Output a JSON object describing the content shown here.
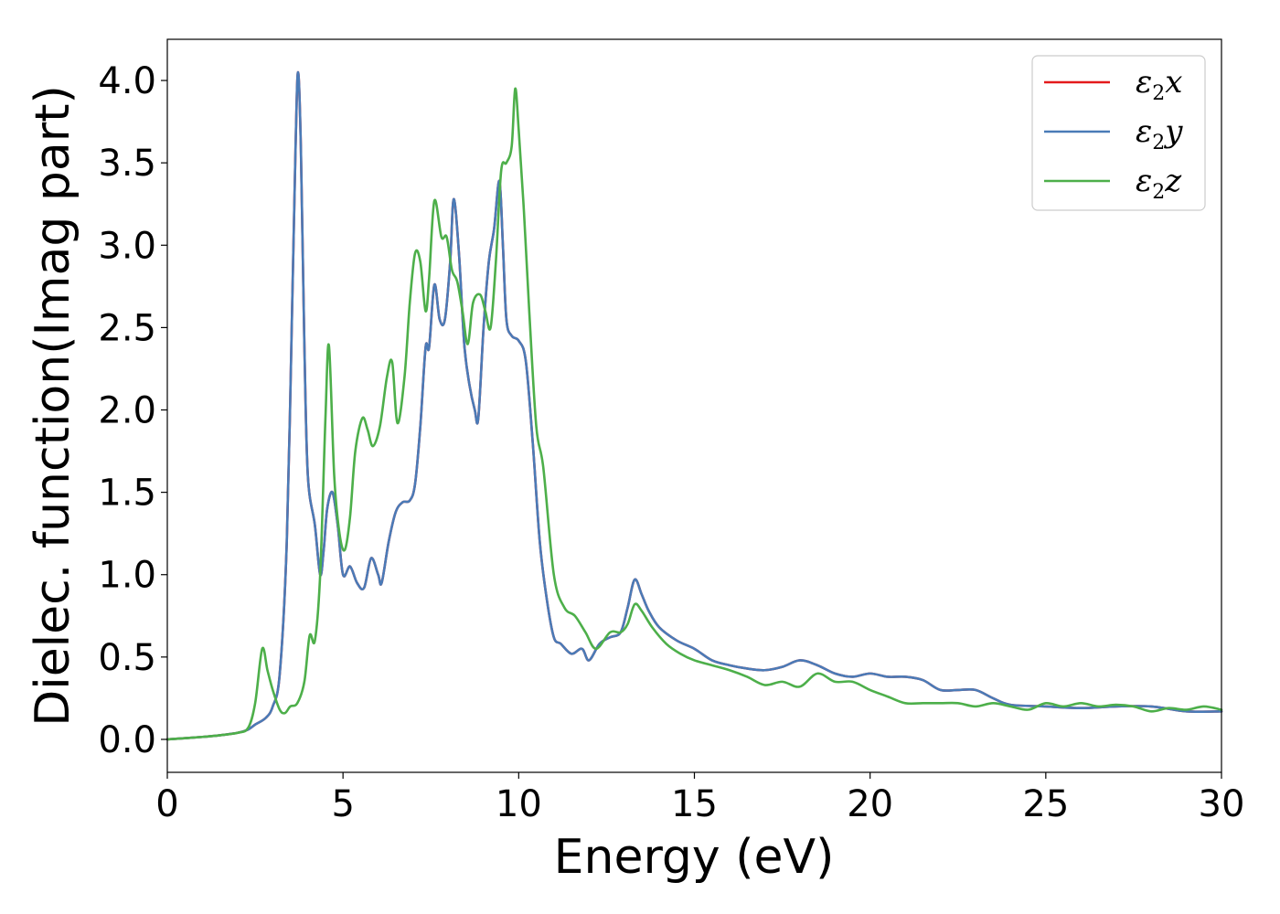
{
  "chart_data": {
    "type": "line",
    "xlabel": "Energy (eV)",
    "ylabel": "Dielec. function(Imag part)",
    "xlim": [
      0,
      30
    ],
    "ylim": [
      -0.2,
      4.25
    ],
    "xticks": [
      "0",
      "5",
      "10",
      "15",
      "20",
      "25",
      "30"
    ],
    "yticks": [
      "0.0",
      "0.5",
      "1.0",
      "1.5",
      "2.0",
      "2.5",
      "3.0",
      "3.5",
      "4.0"
    ],
    "grid": false,
    "legend_position": "top-right",
    "series": [
      {
        "name": "ε2x",
        "legend_base": "ε",
        "legend_sub": "2",
        "legend_tail": "x",
        "color": "#e41a1c",
        "x": [
          0,
          1,
          1.5,
          2,
          2.3,
          2.5,
          2.8,
          3.0,
          3.2,
          3.4,
          3.55,
          3.65,
          3.72,
          3.8,
          3.9,
          4.0,
          4.2,
          4.35,
          4.45,
          4.55,
          4.7,
          4.85,
          5.0,
          5.2,
          5.4,
          5.6,
          5.8,
          6.0,
          6.1,
          6.3,
          6.5,
          6.7,
          6.9,
          7.05,
          7.2,
          7.35,
          7.45,
          7.6,
          7.75,
          7.9,
          8.05,
          8.15,
          8.3,
          8.45,
          8.6,
          8.75,
          8.85,
          9.0,
          9.15,
          9.3,
          9.45,
          9.55,
          9.65,
          9.8,
          10.0,
          10.2,
          10.4,
          10.6,
          10.8,
          11.0,
          11.2,
          11.5,
          11.8,
          12.0,
          12.3,
          12.6,
          12.9,
          13.1,
          13.3,
          13.5,
          13.7,
          14.0,
          14.5,
          15.0,
          15.5,
          16.0,
          16.5,
          17.0,
          17.5,
          18.0,
          18.5,
          19.0,
          19.5,
          20.0,
          20.5,
          21.0,
          21.5,
          22.0,
          22.5,
          23.0,
          23.5,
          24.0,
          25.0,
          26.0,
          27.0,
          28.0,
          29.0,
          30.0
        ],
        "y": [
          0,
          0.015,
          0.025,
          0.04,
          0.06,
          0.09,
          0.13,
          0.2,
          0.4,
          1.2,
          2.6,
          3.6,
          4.05,
          3.6,
          2.4,
          1.6,
          1.3,
          1.0,
          1.15,
          1.4,
          1.5,
          1.3,
          1.0,
          1.05,
          0.95,
          0.92,
          1.1,
          1.0,
          0.95,
          1.2,
          1.38,
          1.44,
          1.45,
          1.55,
          1.9,
          2.38,
          2.38,
          2.76,
          2.55,
          2.55,
          2.9,
          3.28,
          2.95,
          2.4,
          2.15,
          2.0,
          1.95,
          2.5,
          2.9,
          3.1,
          3.39,
          3.0,
          2.55,
          2.45,
          2.42,
          2.3,
          1.8,
          1.2,
          0.85,
          0.62,
          0.58,
          0.52,
          0.55,
          0.48,
          0.58,
          0.62,
          0.65,
          0.8,
          0.97,
          0.88,
          0.78,
          0.68,
          0.6,
          0.55,
          0.48,
          0.45,
          0.43,
          0.42,
          0.44,
          0.48,
          0.45,
          0.4,
          0.38,
          0.4,
          0.38,
          0.38,
          0.36,
          0.3,
          0.3,
          0.3,
          0.25,
          0.21,
          0.2,
          0.19,
          0.2,
          0.2,
          0.17,
          0.17
        ]
      },
      {
        "name": "ε2y",
        "legend_base": "ε",
        "legend_sub": "2",
        "legend_tail": "y",
        "color": "#4a7bb7",
        "x": [
          0,
          1,
          1.5,
          2,
          2.3,
          2.5,
          2.8,
          3.0,
          3.2,
          3.4,
          3.55,
          3.65,
          3.72,
          3.8,
          3.9,
          4.0,
          4.2,
          4.35,
          4.45,
          4.55,
          4.7,
          4.85,
          5.0,
          5.2,
          5.4,
          5.6,
          5.8,
          6.0,
          6.1,
          6.3,
          6.5,
          6.7,
          6.9,
          7.05,
          7.2,
          7.35,
          7.45,
          7.6,
          7.75,
          7.9,
          8.05,
          8.15,
          8.3,
          8.45,
          8.6,
          8.75,
          8.85,
          9.0,
          9.15,
          9.3,
          9.45,
          9.55,
          9.65,
          9.8,
          10.0,
          10.2,
          10.4,
          10.6,
          10.8,
          11.0,
          11.2,
          11.5,
          11.8,
          12.0,
          12.3,
          12.6,
          12.9,
          13.1,
          13.3,
          13.5,
          13.7,
          14.0,
          14.5,
          15.0,
          15.5,
          16.0,
          16.5,
          17.0,
          17.5,
          18.0,
          18.5,
          19.0,
          19.5,
          20.0,
          20.5,
          21.0,
          21.5,
          22.0,
          22.5,
          23.0,
          23.5,
          24.0,
          25.0,
          26.0,
          27.0,
          28.0,
          29.0,
          30.0
        ],
        "y": [
          0,
          0.015,
          0.025,
          0.04,
          0.06,
          0.09,
          0.13,
          0.2,
          0.4,
          1.2,
          2.6,
          3.6,
          4.05,
          3.6,
          2.4,
          1.6,
          1.3,
          1.0,
          1.15,
          1.4,
          1.5,
          1.3,
          1.0,
          1.05,
          0.95,
          0.92,
          1.1,
          1.0,
          0.95,
          1.2,
          1.38,
          1.44,
          1.45,
          1.55,
          1.9,
          2.38,
          2.38,
          2.76,
          2.55,
          2.55,
          2.9,
          3.28,
          2.95,
          2.4,
          2.15,
          2.0,
          1.95,
          2.5,
          2.9,
          3.1,
          3.39,
          3.0,
          2.55,
          2.45,
          2.42,
          2.3,
          1.8,
          1.2,
          0.85,
          0.62,
          0.58,
          0.52,
          0.55,
          0.48,
          0.58,
          0.62,
          0.65,
          0.8,
          0.97,
          0.88,
          0.78,
          0.68,
          0.6,
          0.55,
          0.48,
          0.45,
          0.43,
          0.42,
          0.44,
          0.48,
          0.45,
          0.4,
          0.38,
          0.4,
          0.38,
          0.38,
          0.36,
          0.3,
          0.3,
          0.3,
          0.25,
          0.21,
          0.2,
          0.19,
          0.2,
          0.2,
          0.17,
          0.17
        ]
      },
      {
        "name": "ε2z",
        "legend_base": "ε",
        "legend_sub": "2",
        "legend_tail": "z",
        "color": "#4daf4a",
        "x": [
          0,
          1,
          1.5,
          2,
          2.3,
          2.5,
          2.7,
          2.85,
          3.0,
          3.2,
          3.35,
          3.5,
          3.7,
          3.9,
          4.05,
          4.2,
          4.35,
          4.5,
          4.6,
          4.75,
          4.9,
          5.05,
          5.2,
          5.35,
          5.55,
          5.7,
          5.85,
          6.05,
          6.25,
          6.4,
          6.55,
          6.75,
          6.9,
          7.05,
          7.2,
          7.35,
          7.45,
          7.6,
          7.8,
          7.95,
          8.1,
          8.25,
          8.4,
          8.55,
          8.7,
          8.9,
          9.05,
          9.2,
          9.35,
          9.5,
          9.65,
          9.8,
          9.9,
          10.0,
          10.15,
          10.3,
          10.5,
          10.7,
          11.0,
          11.3,
          11.6,
          11.9,
          12.2,
          12.6,
          12.9,
          13.1,
          13.3,
          13.5,
          13.8,
          14.2,
          14.6,
          15.0,
          15.5,
          16.0,
          16.5,
          17.0,
          17.5,
          18.0,
          18.5,
          19.0,
          19.5,
          20.0,
          20.5,
          21.0,
          21.5,
          22.0,
          22.5,
          23.0,
          23.5,
          24.0,
          24.5,
          25.0,
          25.5,
          26.0,
          26.5,
          27.0,
          27.5,
          28.0,
          28.5,
          29.0,
          29.5,
          30.0
        ],
        "y": [
          0,
          0.015,
          0.025,
          0.04,
          0.07,
          0.22,
          0.55,
          0.42,
          0.3,
          0.18,
          0.16,
          0.2,
          0.22,
          0.35,
          0.63,
          0.6,
          1.0,
          1.95,
          2.39,
          1.6,
          1.25,
          1.15,
          1.35,
          1.75,
          1.95,
          1.88,
          1.78,
          1.9,
          2.2,
          2.29,
          1.92,
          2.2,
          2.65,
          2.95,
          2.9,
          2.6,
          2.8,
          3.27,
          3.05,
          3.05,
          2.85,
          2.78,
          2.6,
          2.4,
          2.65,
          2.7,
          2.6,
          2.5,
          2.9,
          3.45,
          3.5,
          3.6,
          3.95,
          3.7,
          3.2,
          2.6,
          1.9,
          1.65,
          1.0,
          0.8,
          0.75,
          0.65,
          0.55,
          0.65,
          0.65,
          0.7,
          0.82,
          0.78,
          0.68,
          0.58,
          0.52,
          0.48,
          0.45,
          0.42,
          0.38,
          0.33,
          0.35,
          0.32,
          0.4,
          0.35,
          0.35,
          0.3,
          0.26,
          0.22,
          0.22,
          0.22,
          0.22,
          0.2,
          0.22,
          0.2,
          0.18,
          0.22,
          0.2,
          0.22,
          0.2,
          0.21,
          0.2,
          0.17,
          0.19,
          0.18,
          0.2,
          0.18
        ]
      }
    ]
  }
}
